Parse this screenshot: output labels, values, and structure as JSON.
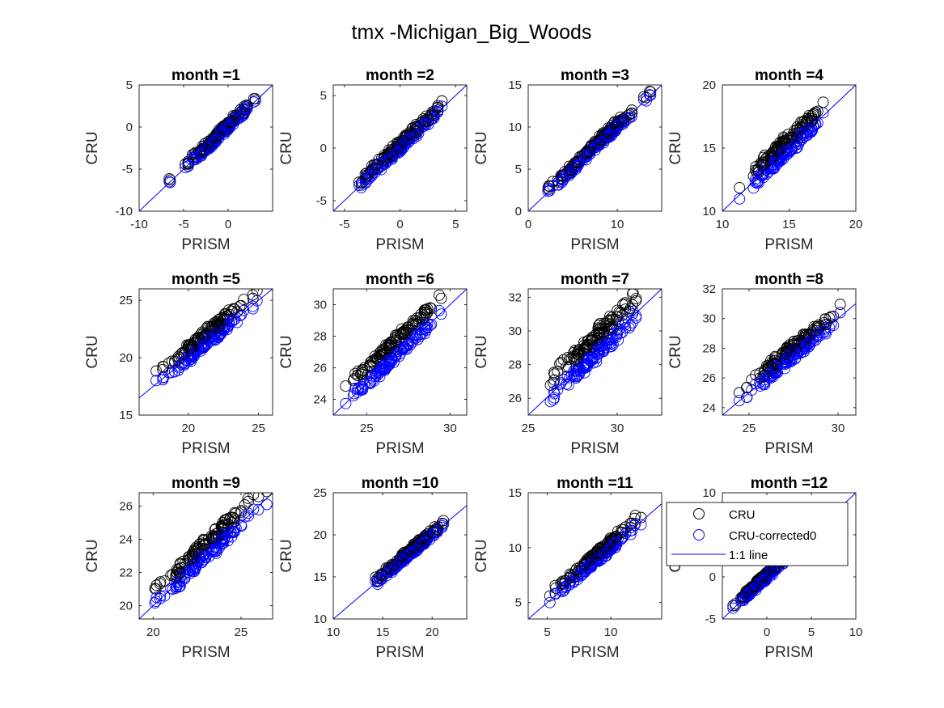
{
  "figure": {
    "title": "tmx -Michigan_Big_Woods"
  },
  "colors": {
    "cru": "#000000",
    "corrected": "#0000ff",
    "line": "#0000ff",
    "axis": "#262626"
  },
  "legend": {
    "placement": "northeast of month 12 panel",
    "items": [
      {
        "label": "CRU",
        "marker": "circle",
        "color": "#000000"
      },
      {
        "label": "CRU-corrected0",
        "marker": "circle",
        "color": "#0000ff"
      },
      {
        "label": "1:1 line",
        "marker": "line",
        "color": "#0000ff"
      }
    ]
  },
  "chart_data": [
    {
      "type": "scatter",
      "title": "month =1",
      "xlabel": "PRISM",
      "ylabel": "CRU",
      "xlim": [
        -10,
        5
      ],
      "ylim": [
        -10,
        5
      ],
      "xticks": [
        -10,
        -5,
        0
      ],
      "yticks": [
        -10,
        -5,
        0,
        5
      ],
      "xrange_data": [
        -7.2,
        4.8
      ],
      "offset_cru": 0.3,
      "offset_corrected": 0.0,
      "spread": 0.55
    },
    {
      "type": "scatter",
      "title": "month =2",
      "xlabel": "PRISM",
      "ylabel": "CRU",
      "xlim": [
        -6,
        6
      ],
      "ylim": [
        -6,
        6
      ],
      "xticks": [
        -5,
        0,
        5
      ],
      "yticks": [
        -5,
        0,
        5
      ],
      "xrange_data": [
        -5.6,
        5.3
      ],
      "offset_cru": 0.4,
      "offset_corrected": 0.0,
      "spread": 0.5
    },
    {
      "type": "scatter",
      "title": "month =3",
      "xlabel": "PRISM",
      "ylabel": "CRU",
      "xlim": [
        0,
        15
      ],
      "ylim": [
        0,
        15
      ],
      "xticks": [
        0,
        10
      ],
      "yticks": [
        0,
        5,
        10,
        15
      ],
      "xrange_data": [
        0.3,
        15
      ],
      "offset_cru": 0.4,
      "offset_corrected": 0.0,
      "spread": 0.55
    },
    {
      "type": "scatter",
      "title": "month =4",
      "xlabel": "PRISM",
      "ylabel": "CRU",
      "xlim": [
        10,
        20
      ],
      "ylim": [
        10,
        20
      ],
      "xticks": [
        10,
        15,
        20
      ],
      "yticks": [
        10,
        15,
        20
      ],
      "xrange_data": [
        10,
        18.6
      ],
      "offset_cru": 0.8,
      "offset_corrected": -0.1,
      "spread": 0.5
    },
    {
      "type": "scatter",
      "title": "month =5",
      "xlabel": "PRISM",
      "ylabel": "CRU",
      "xlim": [
        16.5,
        26
      ],
      "ylim": [
        15,
        26
      ],
      "xticks": [
        20,
        25
      ],
      "yticks": [
        15,
        20,
        25
      ],
      "xrange_data": [
        16.6,
        26
      ],
      "offset_cru": 0.9,
      "offset_corrected": 0.0,
      "spread": 0.5
    },
    {
      "type": "scatter",
      "title": "month =6",
      "xlabel": "PRISM",
      "ylabel": "CRU",
      "xlim": [
        23,
        31
      ],
      "ylim": [
        23,
        31
      ],
      "xticks": [
        25,
        30
      ],
      "yticks": [
        24,
        26,
        28,
        30
      ],
      "xrange_data": [
        23,
        31
      ],
      "offset_cru": 1.0,
      "offset_corrected": 0.0,
      "spread": 0.45
    },
    {
      "type": "scatter",
      "title": "month =7",
      "xlabel": "PRISM",
      "ylabel": "CRU",
      "xlim": [
        25,
        32.5
      ],
      "ylim": [
        25,
        32.5
      ],
      "xticks": [
        25,
        30
      ],
      "yticks": [
        26,
        28,
        30,
        32
      ],
      "xrange_data": [
        25,
        32.3
      ],
      "offset_cru": 0.9,
      "offset_corrected": -0.2,
      "spread": 0.6
    },
    {
      "type": "scatter",
      "title": "month =8",
      "xlabel": "PRISM",
      "ylabel": "CRU",
      "xlim": [
        23.5,
        31
      ],
      "ylim": [
        23.5,
        32
      ],
      "xticks": [
        25,
        30
      ],
      "yticks": [
        24,
        26,
        28,
        30,
        32
      ],
      "xrange_data": [
        23.6,
        31
      ],
      "offset_cru": 0.6,
      "offset_corrected": 0.0,
      "spread": 0.45
    },
    {
      "type": "scatter",
      "title": "month =9",
      "xlabel": "PRISM",
      "ylabel": "CRU",
      "xlim": [
        19.2,
        26.8
      ],
      "ylim": [
        19.2,
        26.8
      ],
      "xticks": [
        20,
        25
      ],
      "yticks": [
        20,
        22,
        24,
        26
      ],
      "xrange_data": [
        19.3,
        26.7
      ],
      "offset_cru": 0.8,
      "offset_corrected": 0.0,
      "spread": 0.45
    },
    {
      "type": "scatter",
      "title": "month =10",
      "xlabel": "PRISM",
      "ylabel": "CRU",
      "xlim": [
        10,
        23.5
      ],
      "ylim": [
        10,
        25
      ],
      "xticks": [
        10,
        15,
        20
      ],
      "yticks": [
        10,
        15,
        20,
        25
      ],
      "xrange_data": [
        12.5,
        23.3
      ],
      "offset_cru": 0.4,
      "offset_corrected": 0.0,
      "spread": 0.45
    },
    {
      "type": "scatter",
      "title": "month =11",
      "xlabel": "PRISM",
      "ylabel": "CRU",
      "xlim": [
        3.5,
        14
      ],
      "ylim": [
        3.5,
        15
      ],
      "xticks": [
        5,
        10
      ],
      "yticks": [
        5,
        10,
        15
      ],
      "xrange_data": [
        3.8,
        13.8
      ],
      "offset_cru": 0.6,
      "offset_corrected": 0.0,
      "spread": 0.45
    },
    {
      "type": "scatter",
      "title": "month =12",
      "xlabel": "PRISM",
      "ylabel": "CRU",
      "xlim": [
        -5,
        10
      ],
      "ylim": [
        -5,
        10
      ],
      "xticks": [
        0,
        5,
        10
      ],
      "yticks": [
        -5,
        0,
        5,
        10
      ],
      "xrange_data": [
        -4.5,
        3.5
      ],
      "offset_cru": 0.3,
      "offset_corrected": 0.0,
      "spread": 0.4
    }
  ]
}
